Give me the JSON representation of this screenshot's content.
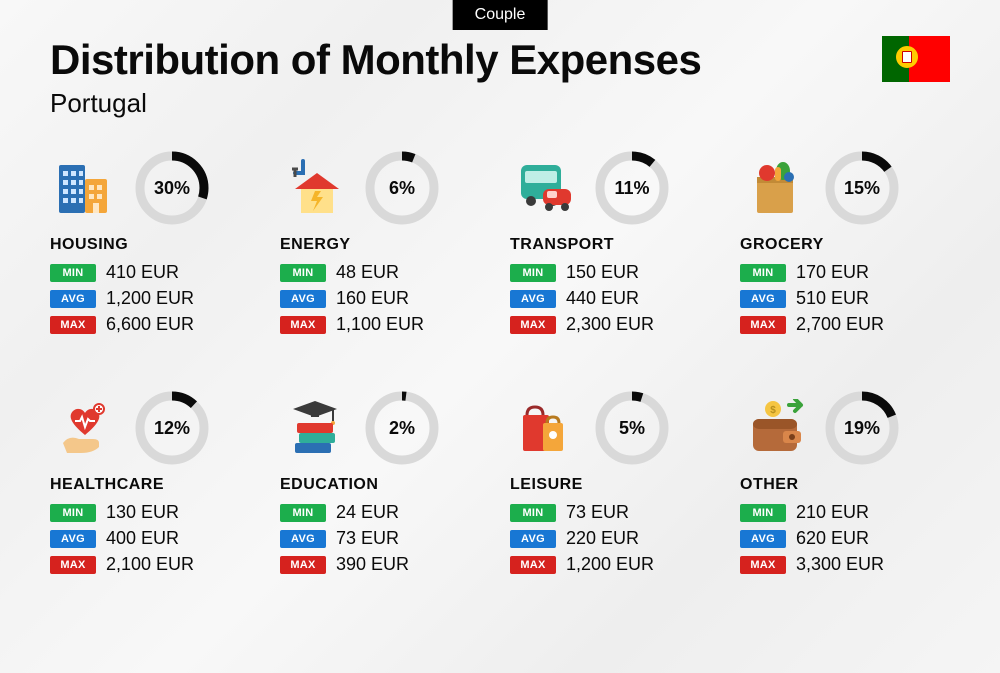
{
  "badge": "Couple",
  "title": "Distribution of Monthly Expenses",
  "country": "Portugal",
  "colors": {
    "min": "#1cae4c",
    "avg": "#1877d4",
    "max": "#d6221e",
    "donut_track": "#d9d9d9",
    "donut_fill": "#0a0a0a"
  },
  "labels": {
    "min": "MIN",
    "avg": "AVG",
    "max": "MAX"
  },
  "categories": [
    {
      "key": "housing",
      "name": "HOUSING",
      "pct": 30,
      "min": "410 EUR",
      "avg": "1,200 EUR",
      "max": "6,600 EUR",
      "icon": "buildings"
    },
    {
      "key": "energy",
      "name": "ENERGY",
      "pct": 6,
      "min": "48 EUR",
      "avg": "160 EUR",
      "max": "1,100 EUR",
      "icon": "energy-house"
    },
    {
      "key": "transport",
      "name": "TRANSPORT",
      "pct": 11,
      "min": "150 EUR",
      "avg": "440 EUR",
      "max": "2,300 EUR",
      "icon": "bus-car"
    },
    {
      "key": "grocery",
      "name": "GROCERY",
      "pct": 15,
      "min": "170 EUR",
      "avg": "510 EUR",
      "max": "2,700 EUR",
      "icon": "grocery-bag"
    },
    {
      "key": "healthcare",
      "name": "HEALTHCARE",
      "pct": 12,
      "min": "130 EUR",
      "avg": "400 EUR",
      "max": "2,100 EUR",
      "icon": "heart-hand"
    },
    {
      "key": "education",
      "name": "EDUCATION",
      "pct": 2,
      "min": "24 EUR",
      "avg": "73 EUR",
      "max": "390 EUR",
      "icon": "books-cap"
    },
    {
      "key": "leisure",
      "name": "LEISURE",
      "pct": 5,
      "min": "73 EUR",
      "avg": "220 EUR",
      "max": "1,200 EUR",
      "icon": "shopping-bags"
    },
    {
      "key": "other",
      "name": "OTHER",
      "pct": 19,
      "min": "210 EUR",
      "avg": "620 EUR",
      "max": "3,300 EUR",
      "icon": "wallet"
    }
  ],
  "donut": {
    "radius": 32,
    "stroke": 9
  }
}
